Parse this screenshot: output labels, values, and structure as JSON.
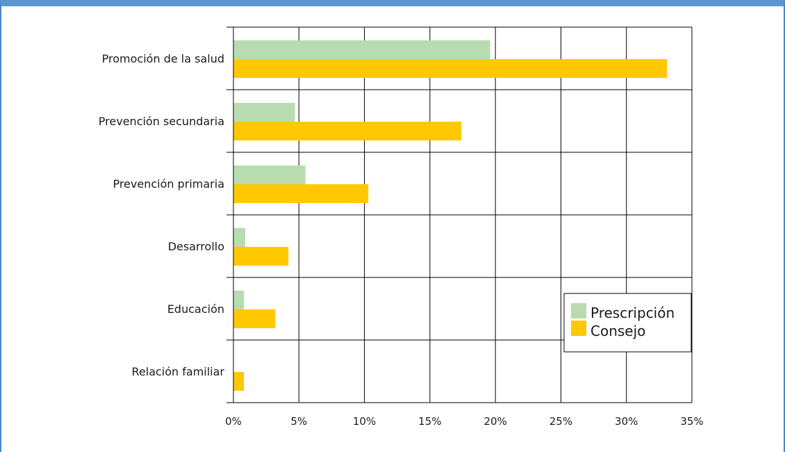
{
  "chart_data": {
    "type": "bar",
    "orientation": "horizontal",
    "categories": [
      "Promoción de la salud",
      "Prevención secundaria",
      "Prevención primaria",
      "Desarrollo",
      "Educación",
      "Relación familiar"
    ],
    "series": [
      {
        "name": "Prescripción",
        "color": "#b8dcb0",
        "values": [
          19.6,
          4.7,
          5.5,
          0.9,
          0.8,
          0
        ]
      },
      {
        "name": "Consejo",
        "color": "#ffc800",
        "values": [
          33.1,
          17.4,
          10.3,
          4.2,
          3.2,
          0.8
        ]
      }
    ],
    "xlim": [
      0,
      35
    ],
    "x_ticks": [
      "0%",
      "5%",
      "10%",
      "15%",
      "20%",
      "25%",
      "30%",
      "35%"
    ],
    "x_tick_values": [
      0,
      5,
      10,
      15,
      20,
      25,
      30,
      35
    ],
    "grid": true,
    "legend_position": "bottom-right"
  }
}
